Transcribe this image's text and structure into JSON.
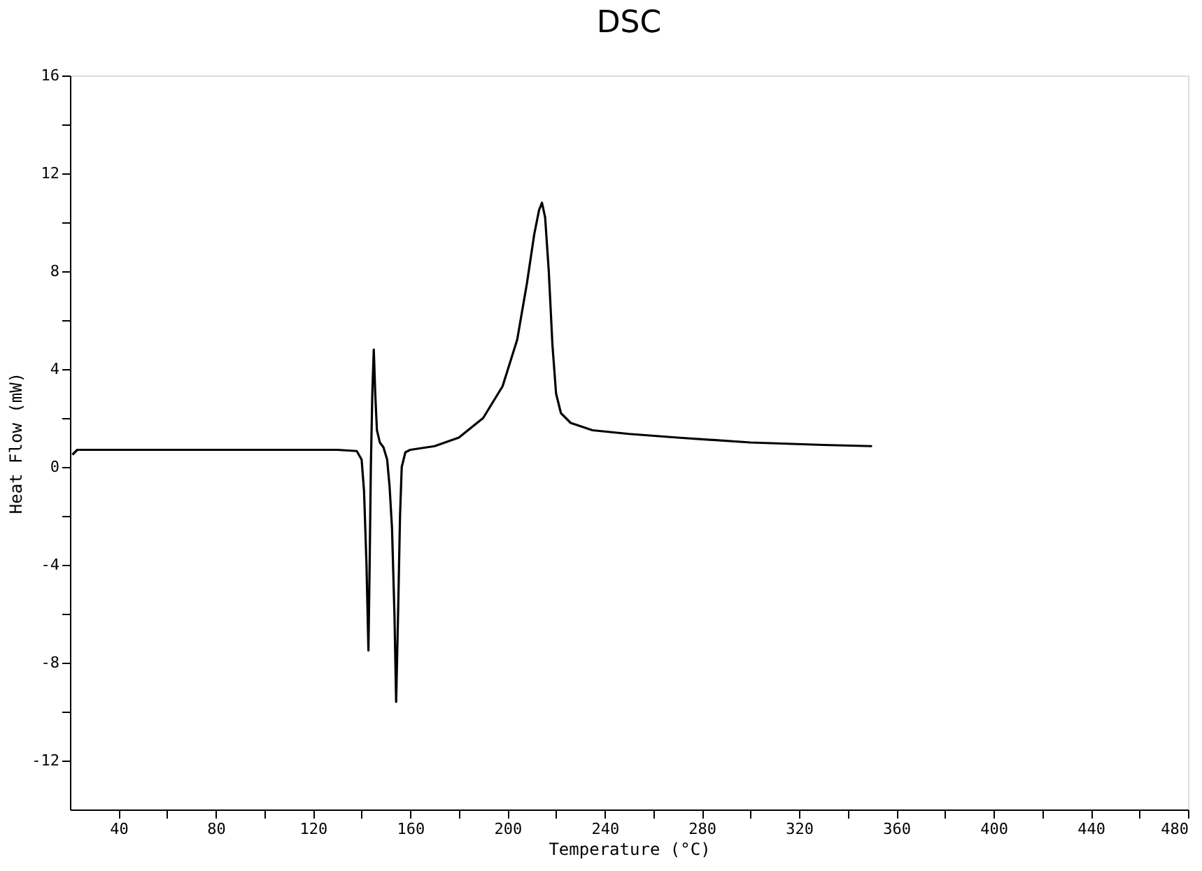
{
  "chart_data": {
    "type": "line",
    "title": "DSC",
    "xlabel": "Temperature (°C)",
    "ylabel": "Heat Flow (mW)",
    "xlim": [
      20,
      480
    ],
    "ylim": [
      -14,
      16
    ],
    "xticks": [
      40,
      {
        "value": 60,
        "label": null
      },
      80,
      {
        "value": 100,
        "label": null
      },
      120,
      {
        "value": 140,
        "label": null
      },
      160,
      {
        "value": 180,
        "label": null
      },
      200,
      {
        "value": 220,
        "label": null
      },
      240,
      {
        "value": 260,
        "label": null
      },
      280,
      {
        "value": 300,
        "label": null
      },
      320,
      {
        "value": 340,
        "label": null
      },
      360,
      {
        "value": 380,
        "label": null
      },
      400,
      {
        "value": 420,
        "label": null
      },
      440,
      {
        "value": 460,
        "label": null
      },
      480
    ],
    "yticks": [
      -12,
      {
        "value": -10,
        "label": null
      },
      -8,
      {
        "value": -6,
        "label": null
      },
      -4,
      {
        "value": -2,
        "label": null
      },
      0,
      {
        "value": 2,
        "label": null
      },
      4,
      {
        "value": 6,
        "label": null
      },
      8,
      {
        "value": 10,
        "label": null
      },
      12,
      {
        "value": 14,
        "label": null
      },
      16
    ],
    "grid": false,
    "legend": false,
    "marker": "none",
    "line_style": "solid",
    "series": [
      {
        "color": "#000000",
        "x": [
          21,
          23,
          60,
          100,
          130,
          138,
          140,
          141,
          142,
          142.8,
          143.3,
          143.8,
          144.4,
          145,
          145.6,
          146.3,
          147.5,
          149,
          150.5,
          151.5,
          152.5,
          153.5,
          154.2,
          155,
          155.8,
          156.5,
          158,
          160,
          170,
          180,
          190,
          198,
          204,
          208,
          211,
          213,
          214.2,
          215.5,
          217,
          218.5,
          220,
          222,
          226,
          235,
          250,
          270,
          300,
          330,
          350
        ],
        "values": [
          0.5,
          0.7,
          0.7,
          0.7,
          0.7,
          0.65,
          0.3,
          -1,
          -4,
          -7.5,
          -4,
          0,
          3,
          4.8,
          3,
          1.5,
          1.0,
          0.8,
          0.3,
          -0.8,
          -2.5,
          -6,
          -9.6,
          -6,
          -2,
          0,
          0.6,
          0.7,
          0.85,
          1.2,
          2.0,
          3.3,
          5.2,
          7.5,
          9.5,
          10.5,
          10.8,
          10.2,
          8,
          5,
          3,
          2.2,
          1.8,
          1.5,
          1.35,
          1.2,
          1.0,
          0.9,
          0.85
        ]
      }
    ]
  }
}
